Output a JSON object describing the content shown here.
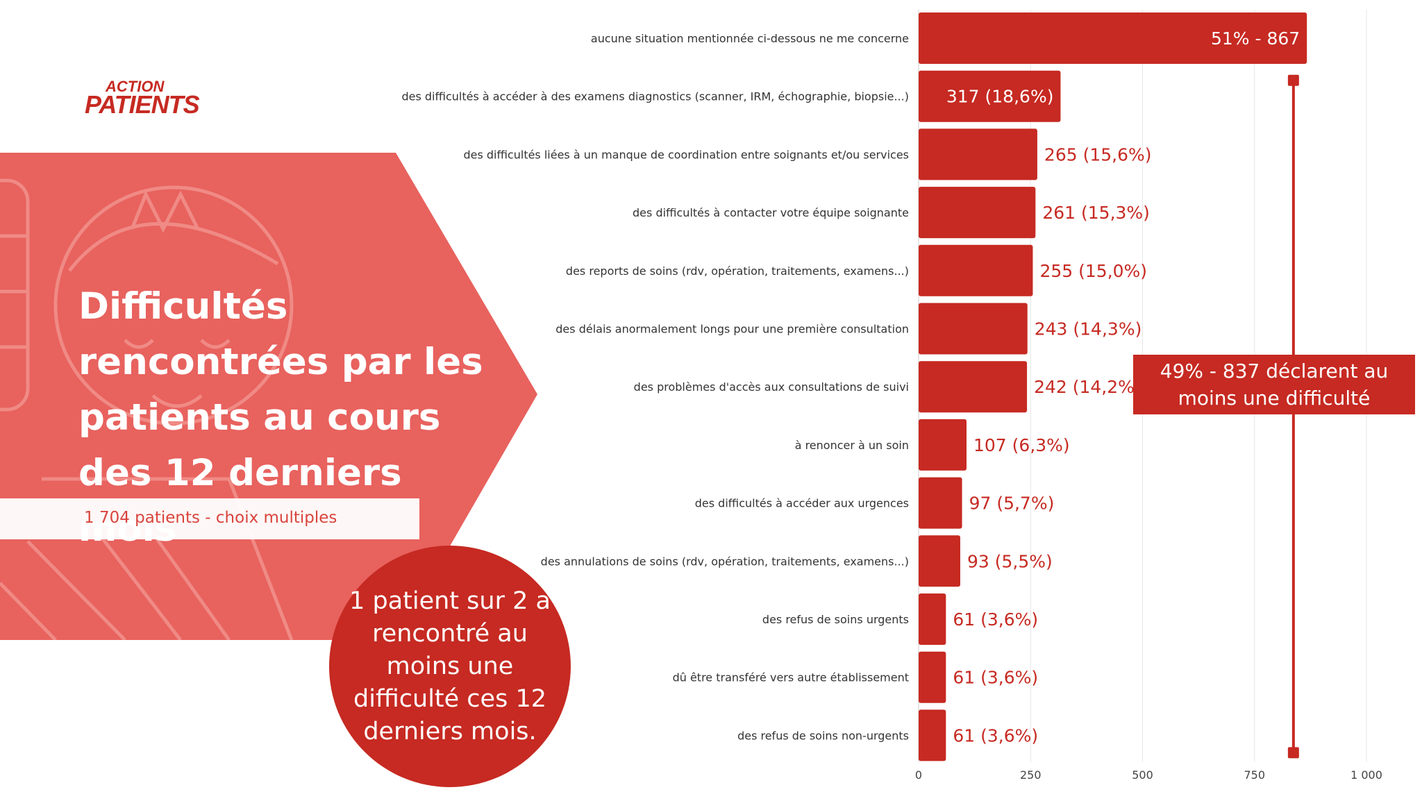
{
  "logo": {
    "line1": "ACTION",
    "line2": "PATIENTS"
  },
  "panel": {
    "title": "Difficultés rencontrées par les patients au cours des 12 derniers mois",
    "subtitle": "1 704 patients - choix multiples",
    "bubble": "1 patient sur 2 a rencontré au moins une difficulté ces 12 derniers mois.",
    "callout": "49% - 837 déclarent au moins une difficulté"
  },
  "colors": {
    "bar": "#c62a22",
    "panel": "#e8625e",
    "grid": "#e6e6e6"
  },
  "chart_data": {
    "type": "bar",
    "orientation": "horizontal",
    "categories": [
      "aucune situation mentionnée ci-dessous ne me concerne",
      "des difficultés à accéder à des examens diagnostics (scanner, IRM, échographie, biopsie...)",
      "des difficultés liées à un manque de coordination entre soignants et/ou services",
      "des difficultés à contacter votre équipe soignante",
      "des reports de soins (rdv, opération, traitements, examens...)",
      "des délais anormalement longs pour une première consultation",
      "des problèmes d'accès aux consultations de suivi",
      "à renoncer à un soin",
      "des difficultés à accéder aux urgences",
      "des annulations de soins (rdv, opération, traitements, examens...)",
      "des refus de soins urgents",
      "dû être transféré vers autre établissement",
      "des refus de soins non-urgents"
    ],
    "values": [
      867,
      317,
      265,
      261,
      255,
      243,
      242,
      107,
      97,
      93,
      61,
      61,
      61
    ],
    "data_labels": [
      "51% - 867",
      "317 (18,6%)",
      "265 (15,6%)",
      "261 (15,3%)",
      "255 (15,0%)",
      "243 (14,3%)",
      "242 (14,2%)",
      "107 (6,3%)",
      "97 (5,7%)",
      "93 (5,5%)",
      "61 (3,6%)",
      "61 (3,6%)",
      "61 (3,6%)"
    ],
    "xlim": [
      0,
      1000
    ],
    "xticks": [
      0,
      250,
      500,
      750,
      1000
    ],
    "xtick_labels": [
      "0",
      "250",
      "500",
      "750",
      "1 000"
    ],
    "grid": true,
    "bracket": {
      "value": 837,
      "from_category": 1,
      "to_category": 12
    }
  }
}
